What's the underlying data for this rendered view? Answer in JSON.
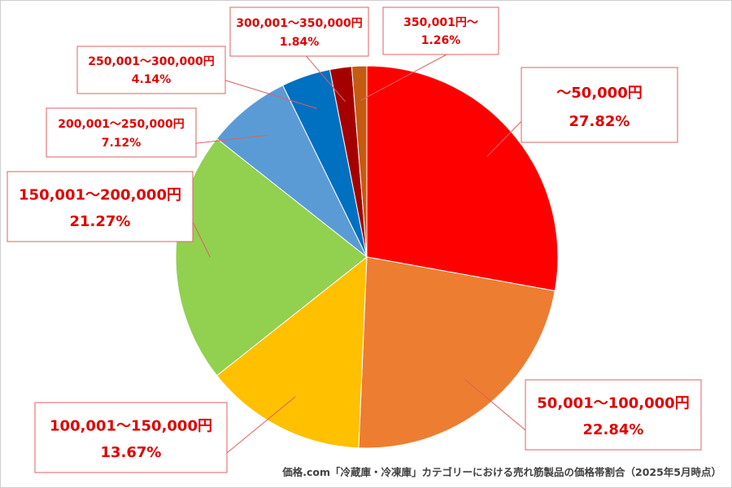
{
  "chart_data": {
    "type": "pie",
    "categories": [
      "～50,000円",
      "50,001～100,000円",
      "100,001～150,000円",
      "150,001～200,000円",
      "200,001～250,000円",
      "250,001～300,000円",
      "300,001～350,000円",
      "350,001円～"
    ],
    "values": [
      27.82,
      22.84,
      13.67,
      21.27,
      7.12,
      4.14,
      1.84,
      1.26
    ],
    "value_labels": [
      "27.82%",
      "22.84%",
      "13.67%",
      "21.27%",
      "7.12%",
      "4.14%",
      "1.84%",
      "1.26%"
    ],
    "colors": [
      "#ff0000",
      "#ed7d31",
      "#ffc000",
      "#92d050",
      "#5b9bd5",
      "#0070c0",
      "#a50000",
      "#c55a11"
    ],
    "start": "12 o'clock",
    "direction": "clockwise",
    "legend": "none",
    "caption": "価格.com「冷蔵庫・冷凍庫」カテゴリーにおける売れ筋製品の価格帯割合（2025年5月時点）"
  }
}
